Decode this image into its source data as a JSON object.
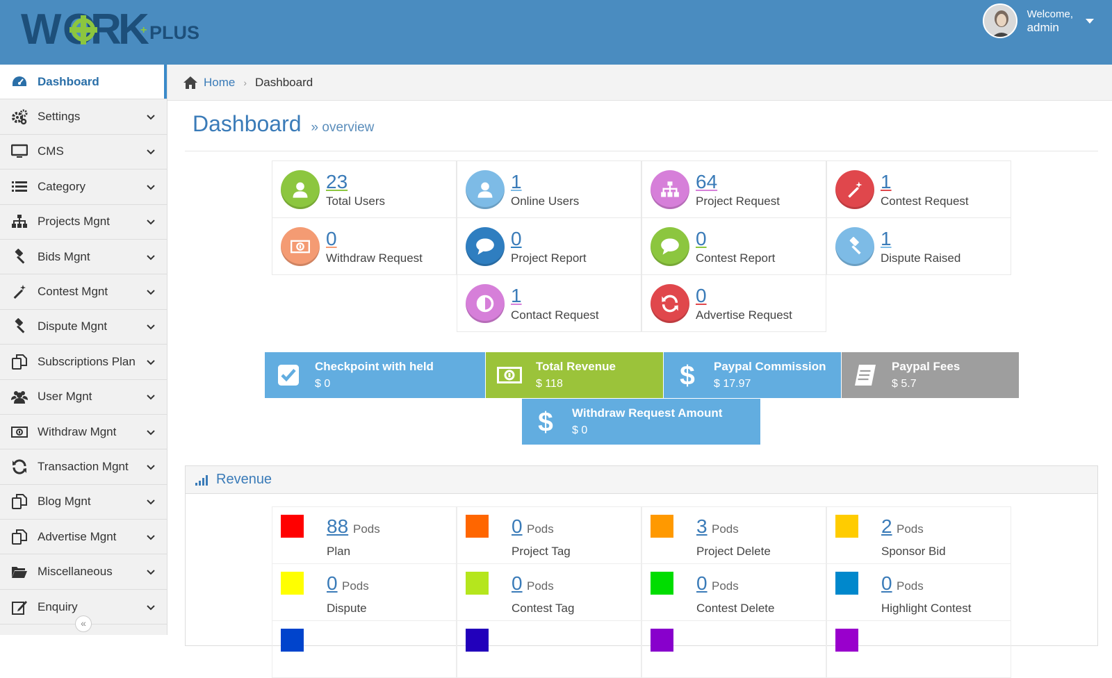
{
  "header": {
    "logo_text": "WORKPLUS",
    "welcome": "Welcome,",
    "username": "admin"
  },
  "sidebar": {
    "items": [
      {
        "label": "Dashboard",
        "icon": "dashboard-icon"
      },
      {
        "label": "Settings",
        "icon": "gears-icon"
      },
      {
        "label": "CMS",
        "icon": "monitor-icon"
      },
      {
        "label": "Category",
        "icon": "list-icon"
      },
      {
        "label": "Projects Mgnt",
        "icon": "sitemap-icon"
      },
      {
        "label": "Bids Mgnt",
        "icon": "gavel-icon"
      },
      {
        "label": "Contest Mgnt",
        "icon": "magic-wand-icon"
      },
      {
        "label": "Dispute Mgnt",
        "icon": "gavel-icon"
      },
      {
        "label": "Subscriptions Plan",
        "icon": "copy-icon"
      },
      {
        "label": "User Mgnt",
        "icon": "users-icon"
      },
      {
        "label": "Withdraw Mgnt",
        "icon": "money-icon"
      },
      {
        "label": "Transaction Mgnt",
        "icon": "refresh-icon"
      },
      {
        "label": "Blog Mgnt",
        "icon": "copy-icon"
      },
      {
        "label": "Advertise Mgnt",
        "icon": "copy-icon"
      },
      {
        "label": "Miscellaneous",
        "icon": "folder-open-icon"
      },
      {
        "label": "Enquiry",
        "icon": "edit-icon"
      }
    ],
    "collapse_glyph": "«"
  },
  "breadcrumb": {
    "home": "Home",
    "current": "Dashboard"
  },
  "page": {
    "title": "Dashboard",
    "subtitle": "» overview"
  },
  "stats": [
    {
      "value": "23",
      "label": "Total Users",
      "color": "#8cc63f",
      "icon": "user-icon"
    },
    {
      "value": "1",
      "label": "Online Users",
      "color": "#7dbbe6",
      "icon": "user-icon"
    },
    {
      "value": "64",
      "label": "Project Request",
      "color": "#d67fd9",
      "icon": "sitemap-icon"
    },
    {
      "value": "1",
      "label": "Contest Request",
      "color": "#e0474c",
      "icon": "magic-wand-icon"
    },
    {
      "value": "0",
      "label": "Withdraw Request",
      "color": "#f49b73",
      "icon": "money-icon"
    },
    {
      "value": "0",
      "label": "Project Report",
      "color": "#2f7ec0",
      "icon": "comments-icon"
    },
    {
      "value": "0",
      "label": "Contest Report",
      "color": "#8cc63f",
      "icon": "comments-icon"
    },
    {
      "value": "1",
      "label": "Dispute Raised",
      "color": "#7dbbe6",
      "icon": "gavel-icon"
    },
    {
      "value": "1",
      "label": "Contact Request",
      "color": "#d67fd9",
      "icon": "contrast-icon"
    },
    {
      "value": "0",
      "label": "Advertise Request",
      "color": "#e0474c",
      "icon": "refresh-icon"
    }
  ],
  "tiles": [
    {
      "title": "Checkpoint with held",
      "value": "$ 0",
      "color": "#62ade0",
      "icon": "checkbox-icon"
    },
    {
      "title": "Total Revenue",
      "value": "$ 118",
      "color": "#9bc33a",
      "icon": "money-icon"
    },
    {
      "title": "Paypal Commission",
      "value": "$ 17.97",
      "color": "#62ade0",
      "icon": "dollar-icon"
    },
    {
      "title": "Paypal Fees",
      "value": "$ 5.7",
      "color": "#9e9e9e",
      "icon": "book-icon"
    },
    {
      "title": "Withdraw Request Amount",
      "value": "$ 0",
      "color": "#62ade0",
      "icon": "dollar-icon"
    }
  ],
  "revenue": {
    "title": "Revenue",
    "unit": "Pods",
    "items": [
      {
        "value": "88",
        "label": "Plan",
        "color": "#ff0000"
      },
      {
        "value": "0",
        "label": "Project Tag",
        "color": "#ff6600"
      },
      {
        "value": "3",
        "label": "Project Delete",
        "color": "#ff9900"
      },
      {
        "value": "2",
        "label": "Sponsor Bid",
        "color": "#ffcc00"
      },
      {
        "value": "0",
        "label": "Dispute",
        "color": "#ffff00"
      },
      {
        "value": "0",
        "label": "Contest Tag",
        "color": "#b5e61d"
      },
      {
        "value": "0",
        "label": "Contest Delete",
        "color": "#00dd00"
      },
      {
        "value": "0",
        "label": "Highlight Contest",
        "color": "#0088cc"
      }
    ],
    "partial_row_colors": [
      "#0044cc",
      "#2200bb",
      "#8800cc",
      "#9900cc"
    ]
  }
}
